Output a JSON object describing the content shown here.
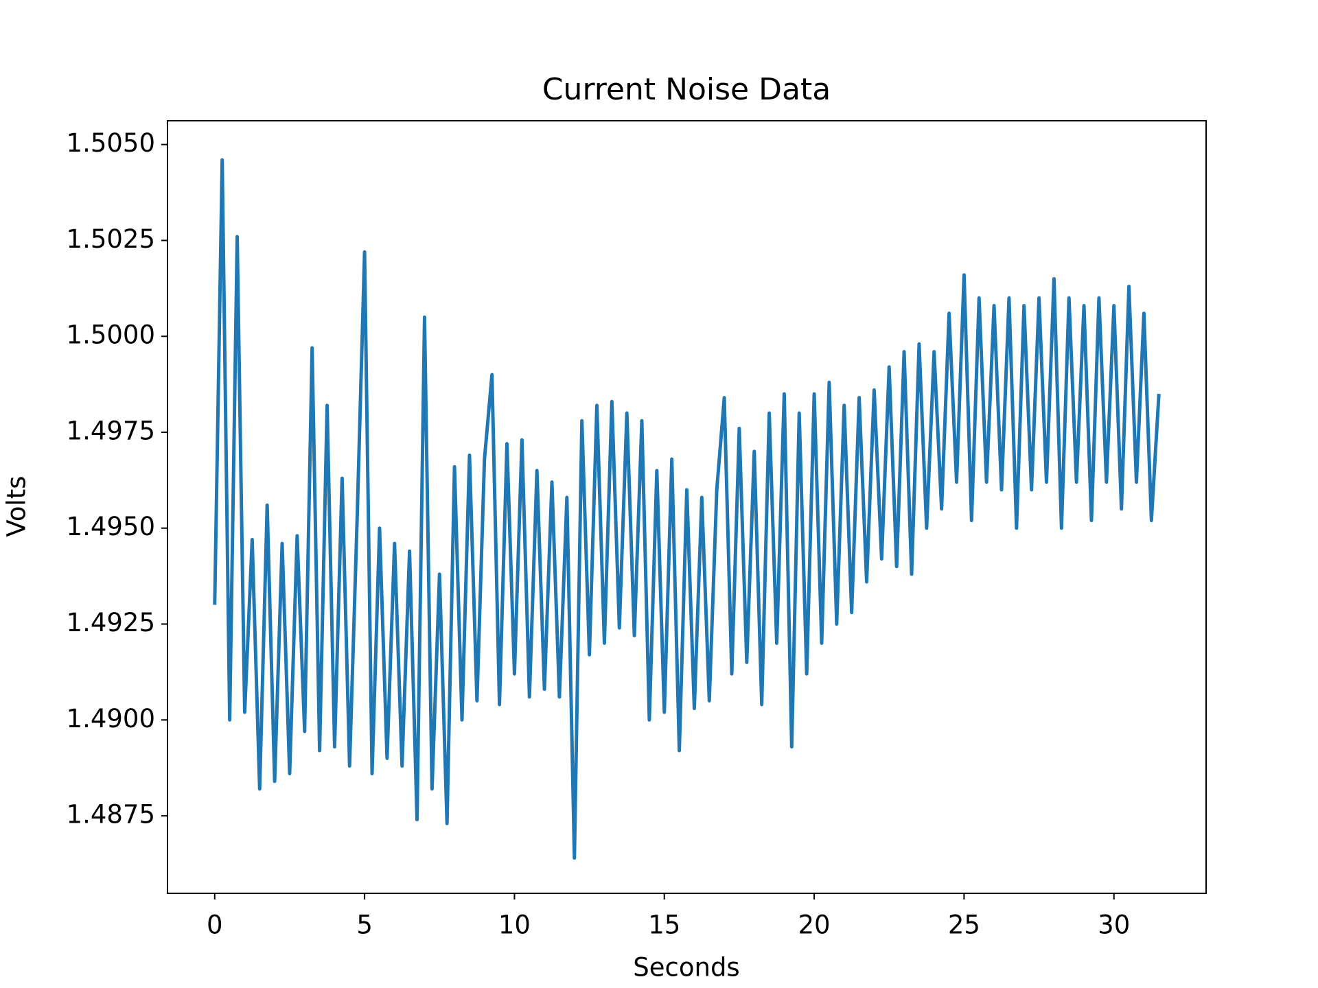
{
  "chart_data": {
    "type": "line",
    "title": "Current Noise Data",
    "x_label": "Seconds",
    "y_label": "Volts",
    "color": "#1f77b4",
    "xlim": [
      -1.575,
      33.075
    ],
    "ylim": [
      1.48548,
      1.50562
    ],
    "xticks": [
      0,
      5,
      10,
      15,
      20,
      25,
      30
    ],
    "yticks": [
      {
        "value": 1.4875,
        "label": "1.4875"
      },
      {
        "value": 1.49,
        "label": "1.4900"
      },
      {
        "value": 1.4925,
        "label": "1.4925"
      },
      {
        "value": 1.495,
        "label": "1.4950"
      },
      {
        "value": 1.4975,
        "label": "1.4975"
      },
      {
        "value": 1.5,
        "label": "1.5000"
      },
      {
        "value": 1.5025,
        "label": "1.5025"
      },
      {
        "value": 1.505,
        "label": "1.5050"
      }
    ],
    "x": [
      0,
      0.25,
      0.5,
      0.75,
      1,
      1.25,
      1.5,
      1.75,
      2,
      2.25,
      2.5,
      2.75,
      3,
      3.25,
      3.5,
      3.75,
      4,
      4.25,
      4.5,
      4.75,
      5,
      5.25,
      5.5,
      5.75,
      6,
      6.25,
      6.5,
      6.75,
      7,
      7.25,
      7.5,
      7.75,
      8,
      8.25,
      8.5,
      8.75,
      9,
      9.25,
      9.5,
      9.75,
      10,
      10.25,
      10.5,
      10.75,
      11,
      11.25,
      11.5,
      11.75,
      12,
      12.25,
      12.5,
      12.75,
      13,
      13.25,
      13.5,
      13.75,
      14,
      14.25,
      14.5,
      14.75,
      15,
      15.25,
      15.5,
      15.75,
      16,
      16.25,
      16.5,
      16.75,
      17,
      17.25,
      17.5,
      17.75,
      18,
      18.25,
      18.5,
      18.75,
      19,
      19.25,
      19.5,
      19.75,
      20,
      20.25,
      20.5,
      20.75,
      21,
      21.25,
      21.5,
      21.75,
      22,
      22.25,
      22.5,
      22.75,
      23,
      23.25,
      23.5,
      23.75,
      24,
      24.25,
      24.5,
      24.75,
      25,
      25.25,
      25.5,
      25.75,
      26,
      26.25,
      26.5,
      26.75,
      27,
      27.25,
      27.5,
      27.75,
      28,
      28.25,
      28.5,
      28.75,
      29,
      29.25,
      29.5,
      29.75,
      30,
      30.25,
      30.5,
      30.75,
      31,
      31.25,
      31.5
    ],
    "values": [
      1.493,
      1.5046,
      1.49,
      1.5026,
      1.4902,
      1.4947,
      1.4882,
      1.4956,
      1.4884,
      1.4946,
      1.4886,
      1.4948,
      1.4897,
      1.4997,
      1.4892,
      1.4982,
      1.4893,
      1.4963,
      1.4888,
      1.4952,
      1.5022,
      1.4886,
      1.495,
      1.489,
      1.4946,
      1.4888,
      1.4944,
      1.4874,
      1.5005,
      1.4882,
      1.4938,
      1.4873,
      1.4966,
      1.49,
      1.4969,
      1.4905,
      1.4968,
      1.499,
      1.4904,
      1.4972,
      1.4912,
      1.4973,
      1.4906,
      1.4965,
      1.4908,
      1.4962,
      1.4906,
      1.4958,
      1.4864,
      1.4978,
      1.4917,
      1.4982,
      1.492,
      1.4983,
      1.4924,
      1.498,
      1.4922,
      1.4978,
      1.49,
      1.4965,
      1.4902,
      1.4968,
      1.4892,
      1.496,
      1.4903,
      1.4958,
      1.4905,
      1.496,
      1.4984,
      1.4912,
      1.4976,
      1.4915,
      1.497,
      1.4904,
      1.498,
      1.492,
      1.4985,
      1.4893,
      1.498,
      1.4912,
      1.4985,
      1.492,
      1.4988,
      1.4925,
      1.4982,
      1.4928,
      1.4984,
      1.4936,
      1.4986,
      1.4942,
      1.4992,
      1.494,
      1.4996,
      1.4938,
      1.4998,
      1.495,
      1.4996,
      1.4955,
      1.5006,
      1.4962,
      1.5016,
      1.4952,
      1.501,
      1.4962,
      1.5008,
      1.496,
      1.501,
      1.495,
      1.5008,
      1.496,
      1.501,
      1.4962,
      1.5015,
      1.495,
      1.501,
      1.4962,
      1.5008,
      1.4952,
      1.501,
      1.4962,
      1.5008,
      1.4955,
      1.5013,
      1.4962,
      1.5006,
      1.4952,
      1.4985
    ]
  }
}
